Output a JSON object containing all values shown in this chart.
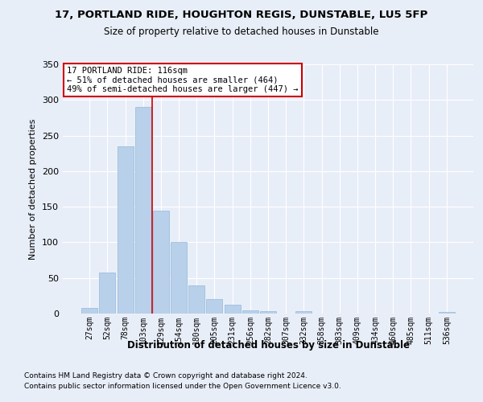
{
  "title1": "17, PORTLAND RIDE, HOUGHTON REGIS, DUNSTABLE, LU5 5FP",
  "title2": "Size of property relative to detached houses in Dunstable",
  "xlabel": "Distribution of detached houses by size in Dunstable",
  "ylabel": "Number of detached properties",
  "categories": [
    "27sqm",
    "52sqm",
    "78sqm",
    "103sqm",
    "129sqm",
    "154sqm",
    "180sqm",
    "205sqm",
    "231sqm",
    "256sqm",
    "282sqm",
    "307sqm",
    "332sqm",
    "358sqm",
    "383sqm",
    "409sqm",
    "434sqm",
    "460sqm",
    "485sqm",
    "511sqm",
    "536sqm"
  ],
  "values": [
    8,
    58,
    235,
    290,
    145,
    100,
    40,
    20,
    12,
    5,
    3,
    0,
    3,
    0,
    0,
    0,
    0,
    0,
    0,
    0,
    2
  ],
  "bar_color": "#b8d0ea",
  "bar_edge_color": "#95b8d8",
  "vline_x_index": 3.5,
  "vline_color": "#cc0000",
  "annotation_text": "17 PORTLAND RIDE: 116sqm\n← 51% of detached houses are smaller (464)\n49% of semi-detached houses are larger (447) →",
  "annotation_box_color": "white",
  "annotation_box_edge": "#cc0000",
  "ylim": [
    0,
    350
  ],
  "yticks": [
    0,
    50,
    100,
    150,
    200,
    250,
    300,
    350
  ],
  "footnote1": "Contains HM Land Registry data © Crown copyright and database right 2024.",
  "footnote2": "Contains public sector information licensed under the Open Government Licence v3.0.",
  "bg_color": "#e8eef8",
  "plot_bg_color": "#e8eef8",
  "grid_color": "white"
}
